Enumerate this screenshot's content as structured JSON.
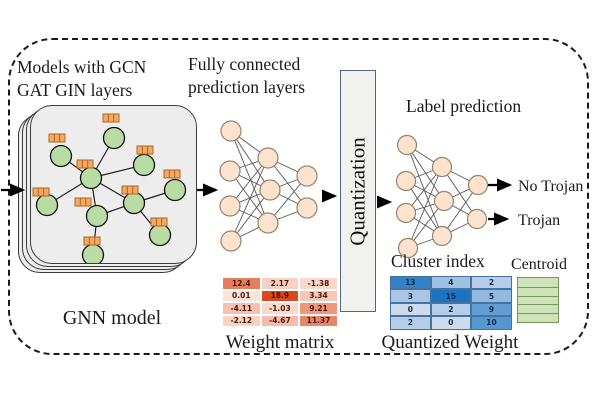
{
  "left_section": {
    "title_line1": "Models with GCN",
    "title_line2": "GAT GIN layers",
    "caption": "GNN model"
  },
  "middle_section": {
    "title_line1": "Fully connected",
    "title_line2": "prediction layers",
    "weight_matrix_caption": "Weight matrix",
    "weight_matrix": {
      "rows": [
        [
          "12.4",
          "2.17",
          "-1.38"
        ],
        [
          "0.01",
          "18.9",
          "3.34"
        ],
        [
          "-4.11",
          "-1.03",
          "9.21"
        ],
        [
          "-2.12",
          "-4.67",
          "11.37"
        ]
      ],
      "heat_light": "#fde3d8",
      "heat_dark": "#dc4720",
      "text_color": "#48170a"
    }
  },
  "quantization": {
    "label": "Quantization"
  },
  "right_section": {
    "title": "Label prediction",
    "output_labels": [
      "No Trojan",
      "Trojan"
    ],
    "cluster_index_caption": "Cluster index",
    "centroid_caption": "Centroid",
    "quantized_weight_caption": "Quantized Weight",
    "cluster_index": {
      "rows": [
        [
          "13",
          "4",
          "2"
        ],
        [
          "3",
          "15",
          "5"
        ],
        [
          "0",
          "2",
          "9"
        ],
        [
          "2",
          "0",
          "10"
        ]
      ],
      "heat_light": "#cddbee",
      "heat_dark": "#1b74c2",
      "text_color": "#102a50"
    },
    "centroid": {
      "row_count": 5,
      "fill": "#cfe3ba",
      "border": "#76975a"
    }
  }
}
